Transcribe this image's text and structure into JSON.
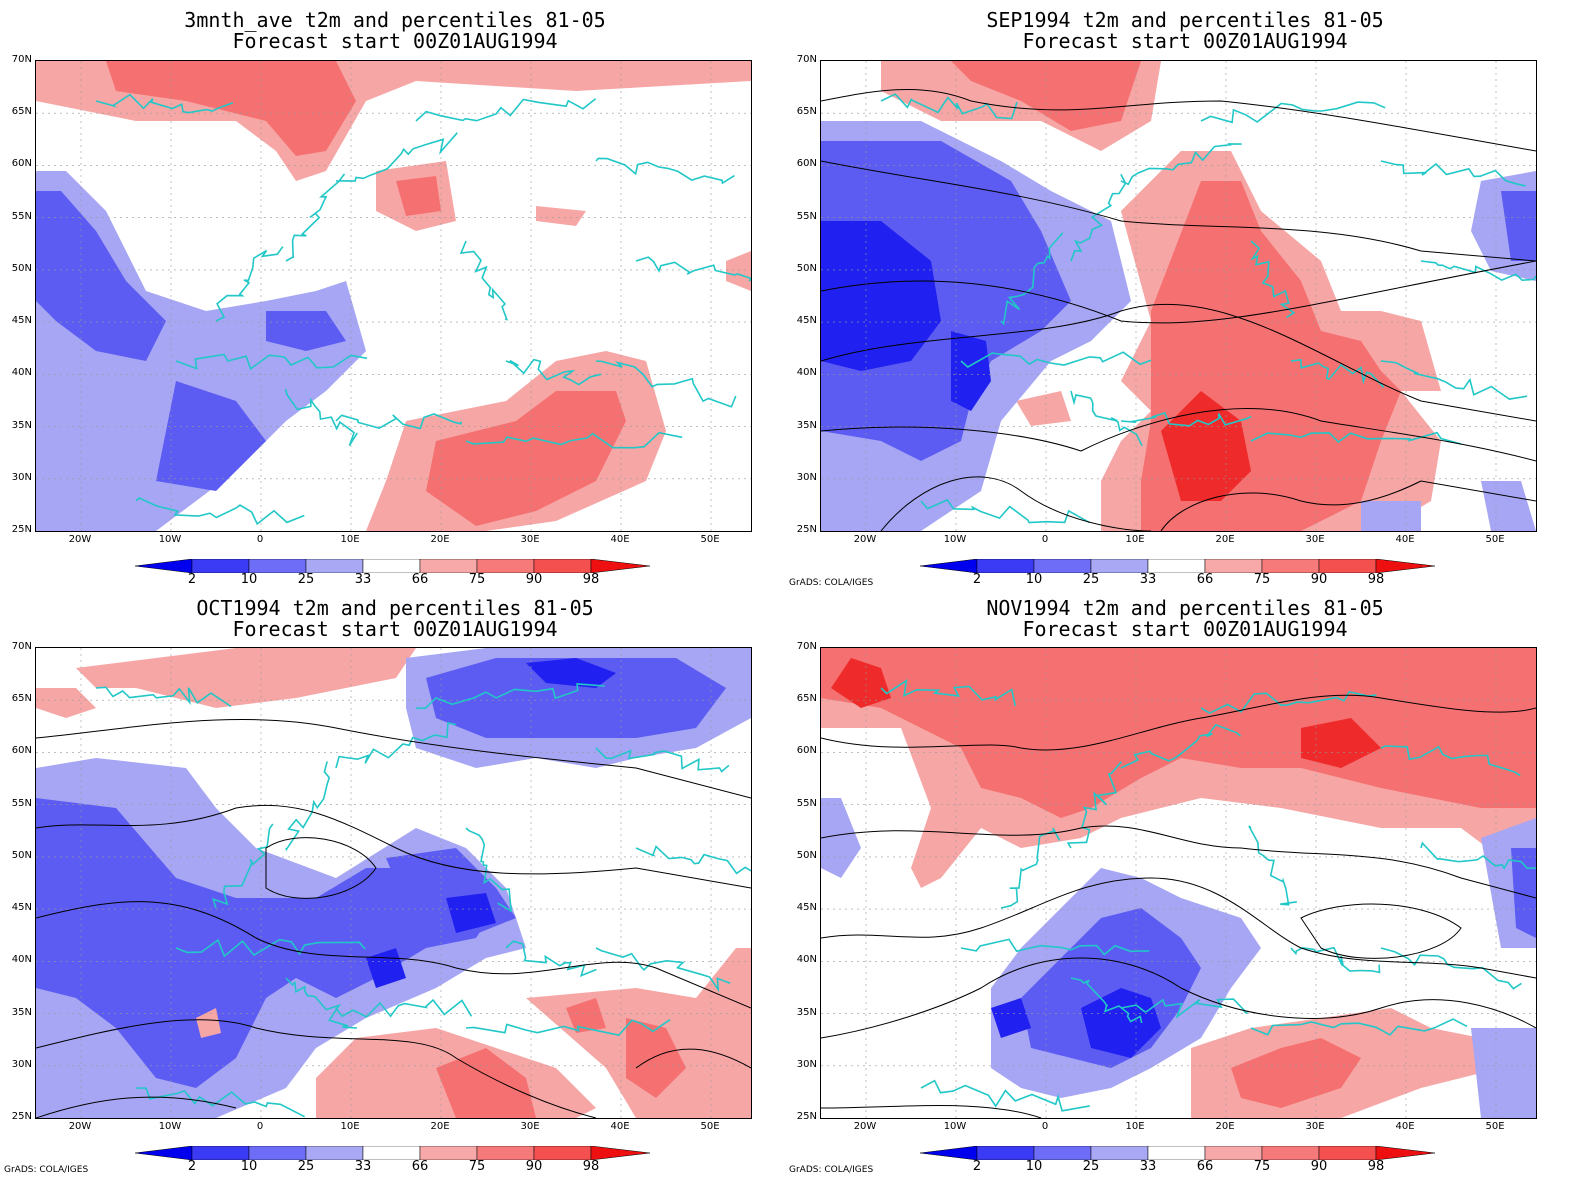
{
  "panels": [
    {
      "title1": "3mnth_ave t2m and percentiles 81-05",
      "title2": "Forecast start 00Z01AUG1994"
    },
    {
      "title1": "SEP1994 t2m and percentiles 81-05",
      "title2": "Forecast start 00Z01AUG1994"
    },
    {
      "title1": "OCT1994 t2m and percentiles 81-05",
      "title2": "Forecast start 00Z01AUG1994"
    },
    {
      "title1": "NOV1994 t2m and percentiles 81-05",
      "title2": "Forecast start 00Z01AUG1994"
    }
  ],
  "lat_ticks": [
    "70N",
    "65N",
    "60N",
    "55N",
    "50N",
    "45N",
    "40N",
    "35N",
    "30N",
    "25N"
  ],
  "lon_ticks": [
    "20W",
    "10W",
    "0",
    "10E",
    "20E",
    "30E",
    "40E",
    "50E"
  ],
  "colorbar": {
    "labels": [
      "2",
      "10",
      "25",
      "33",
      "66",
      "75",
      "90",
      "98"
    ],
    "colors": [
      "#0000ee",
      "#3b3bf5",
      "#6d6df7",
      "#a8a8f5",
      "#ffffff",
      "#f7a8a8",
      "#f77a7a",
      "#f55050",
      "#ee1010"
    ]
  },
  "credit": "GrADS: COLA/IGES",
  "colors": {
    "coast": "#22c7c7",
    "contour": "#000000",
    "blue_dark": "#2020f0",
    "blue_mid": "#5c5cf2",
    "blue_light": "#a6a6f4",
    "red_light": "#f7a6a6",
    "red_mid": "#f57070",
    "red_dark": "#ee2a2a"
  }
}
